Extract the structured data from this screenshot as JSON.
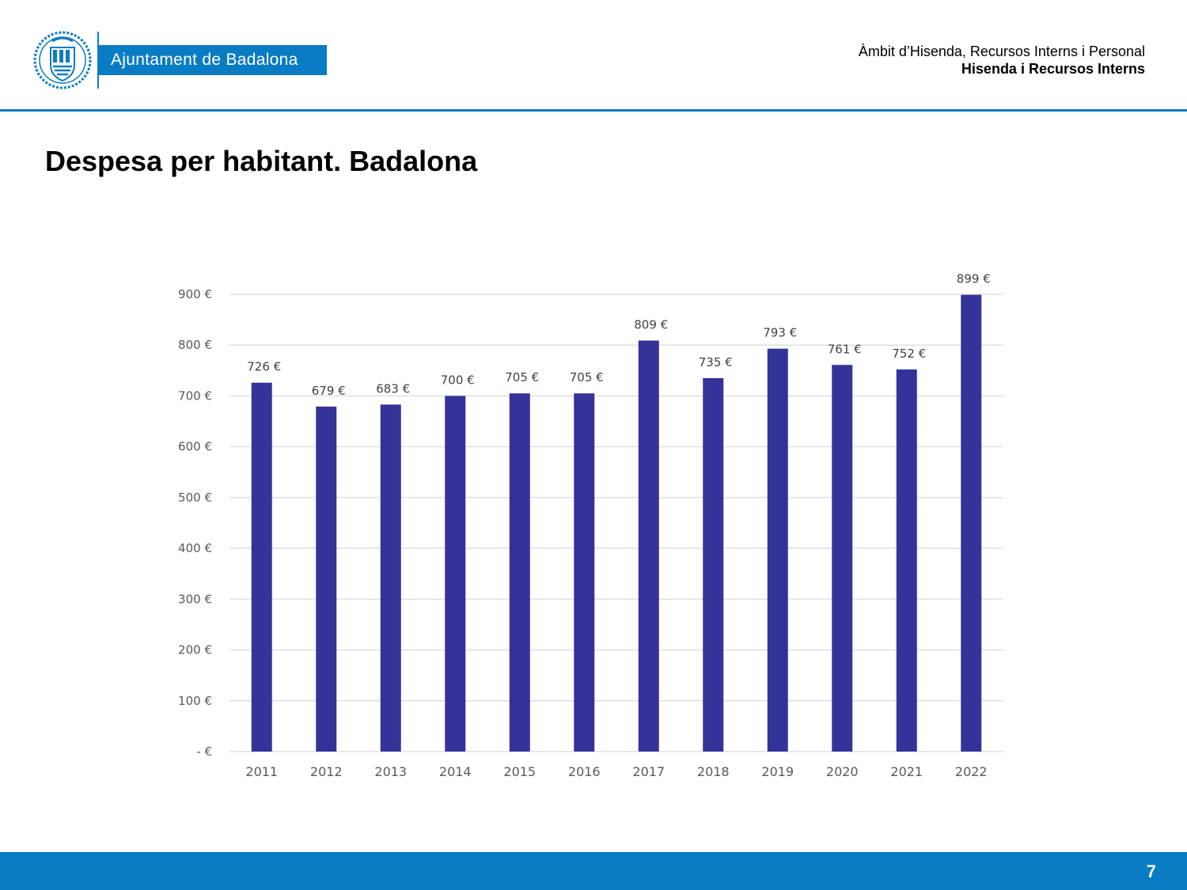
{
  "header": {
    "logo_text": "Ajuntament de Badalona",
    "dept_line1": "Àmbit d’Hisenda, Recursos Interns i Personal",
    "dept_line2": "Hisenda i Recursos Interns"
  },
  "page": {
    "title": "Despesa per habitant. Badalona",
    "number": "7"
  },
  "colors": {
    "brand": "#0a7cc4",
    "bar": "#333399",
    "grid": "#d9d9d9",
    "axis_text": "#595959"
  },
  "chart_data": {
    "type": "bar",
    "categories": [
      "2011",
      "2012",
      "2013",
      "2014",
      "2015",
      "2016",
      "2017",
      "2018",
      "2019",
      "2020",
      "2021",
      "2022"
    ],
    "values": [
      726,
      679,
      683,
      700,
      705,
      705,
      809,
      735,
      793,
      761,
      752,
      899
    ],
    "data_labels": [
      "726 €",
      "679 €",
      "683 €",
      "700 €",
      "705 €",
      "705 €",
      "809 €",
      "735 €",
      "793 €",
      "761 €",
      "752 €",
      "899 €"
    ],
    "y_ticks": [
      0,
      100,
      200,
      300,
      400,
      500,
      600,
      700,
      800,
      900
    ],
    "y_tick_labels": [
      "-   €",
      "100 €",
      "200 €",
      "300 €",
      "400 €",
      "500 €",
      "600 €",
      "700 €",
      "800 €",
      "900 €"
    ],
    "ylim": [
      0,
      900
    ],
    "grid": true,
    "legend": "none"
  }
}
